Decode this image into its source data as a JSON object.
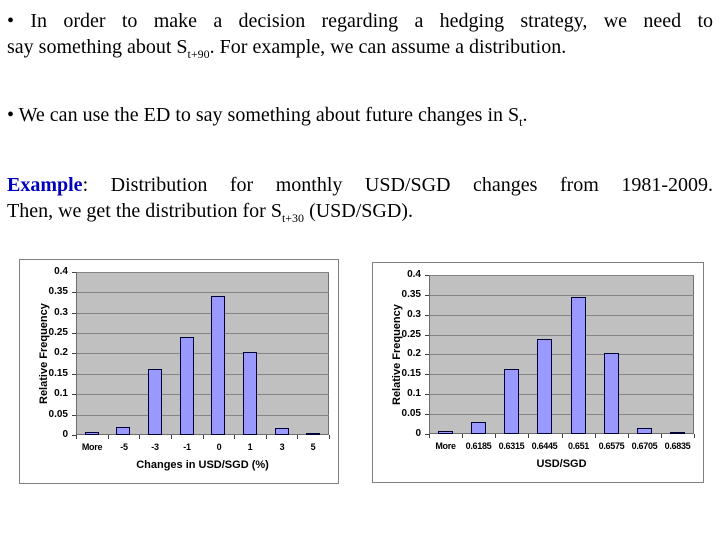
{
  "colors": {
    "example_label": "#0000C0",
    "bar_fill": "#9999FF",
    "bar_border": "#000033",
    "plot_bg": "#C0C0C0",
    "plot_border": "#6E6E6E",
    "gridline": "#848484",
    "tick": "#404040",
    "slide_bg": "#FFFFFF"
  },
  "paragraphs": {
    "b1_bullet": "•",
    "b1_line1": "In order to make a decision regarding a hedging strategy, we need to",
    "b1_line2_a": "say something about S",
    "b1_line2_sub": "t+90",
    "b1_line2_b": ". For example, we can assume a distribution.",
    "b2_bullet": "•",
    "b2_a": "We can use the ED to say something about future changes in S",
    "b2_sub": "t",
    "b2_b": ".",
    "ex_label": "Example",
    "ex_sep": ": ",
    "ex_line1": "Distribution for monthly USD/SGD changes from 1981-2009.",
    "ex_line2_a": "Then, we get the distribution for S",
    "ex_line2_sub": "t+30",
    "ex_line2_b": " (USD/SGD)."
  },
  "chart_data": [
    {
      "type": "bar",
      "title": "",
      "categories": [
        "More",
        "-5",
        "-3",
        "-1",
        "0",
        "1",
        "3",
        "5"
      ],
      "values": [
        0.008,
        0.02,
        0.162,
        0.24,
        0.342,
        0.204,
        0.017,
        0.005
      ],
      "xlabel": "Changes in USD/SGD (%)",
      "ylabel": "Relative Frequency",
      "ylim": [
        0,
        0.4
      ],
      "ytick_step": 0.05,
      "yticks": [
        "0",
        "0.05",
        "0.1",
        "0.15",
        "0.2",
        "0.25",
        "0.3",
        "0.35",
        "0.4"
      ],
      "grid": true,
      "legend": "none"
    },
    {
      "type": "bar",
      "title": "",
      "categories": [
        "More",
        "0.6185",
        "0.6315",
        "0.6445",
        "0.651",
        "0.6575",
        "0.6705",
        "0.6835"
      ],
      "values": [
        0.007,
        0.03,
        0.163,
        0.24,
        0.345,
        0.205,
        0.016,
        0.005
      ],
      "xlabel": "USD/SGD",
      "ylabel": "Relative Frequency",
      "ylim": [
        0,
        0.4
      ],
      "ytick_step": 0.05,
      "yticks": [
        "0",
        "0.05",
        "0.1",
        "0.15",
        "0.2",
        "0.25",
        "0.3",
        "0.35",
        "0.4"
      ],
      "grid": true,
      "legend": "none"
    }
  ]
}
